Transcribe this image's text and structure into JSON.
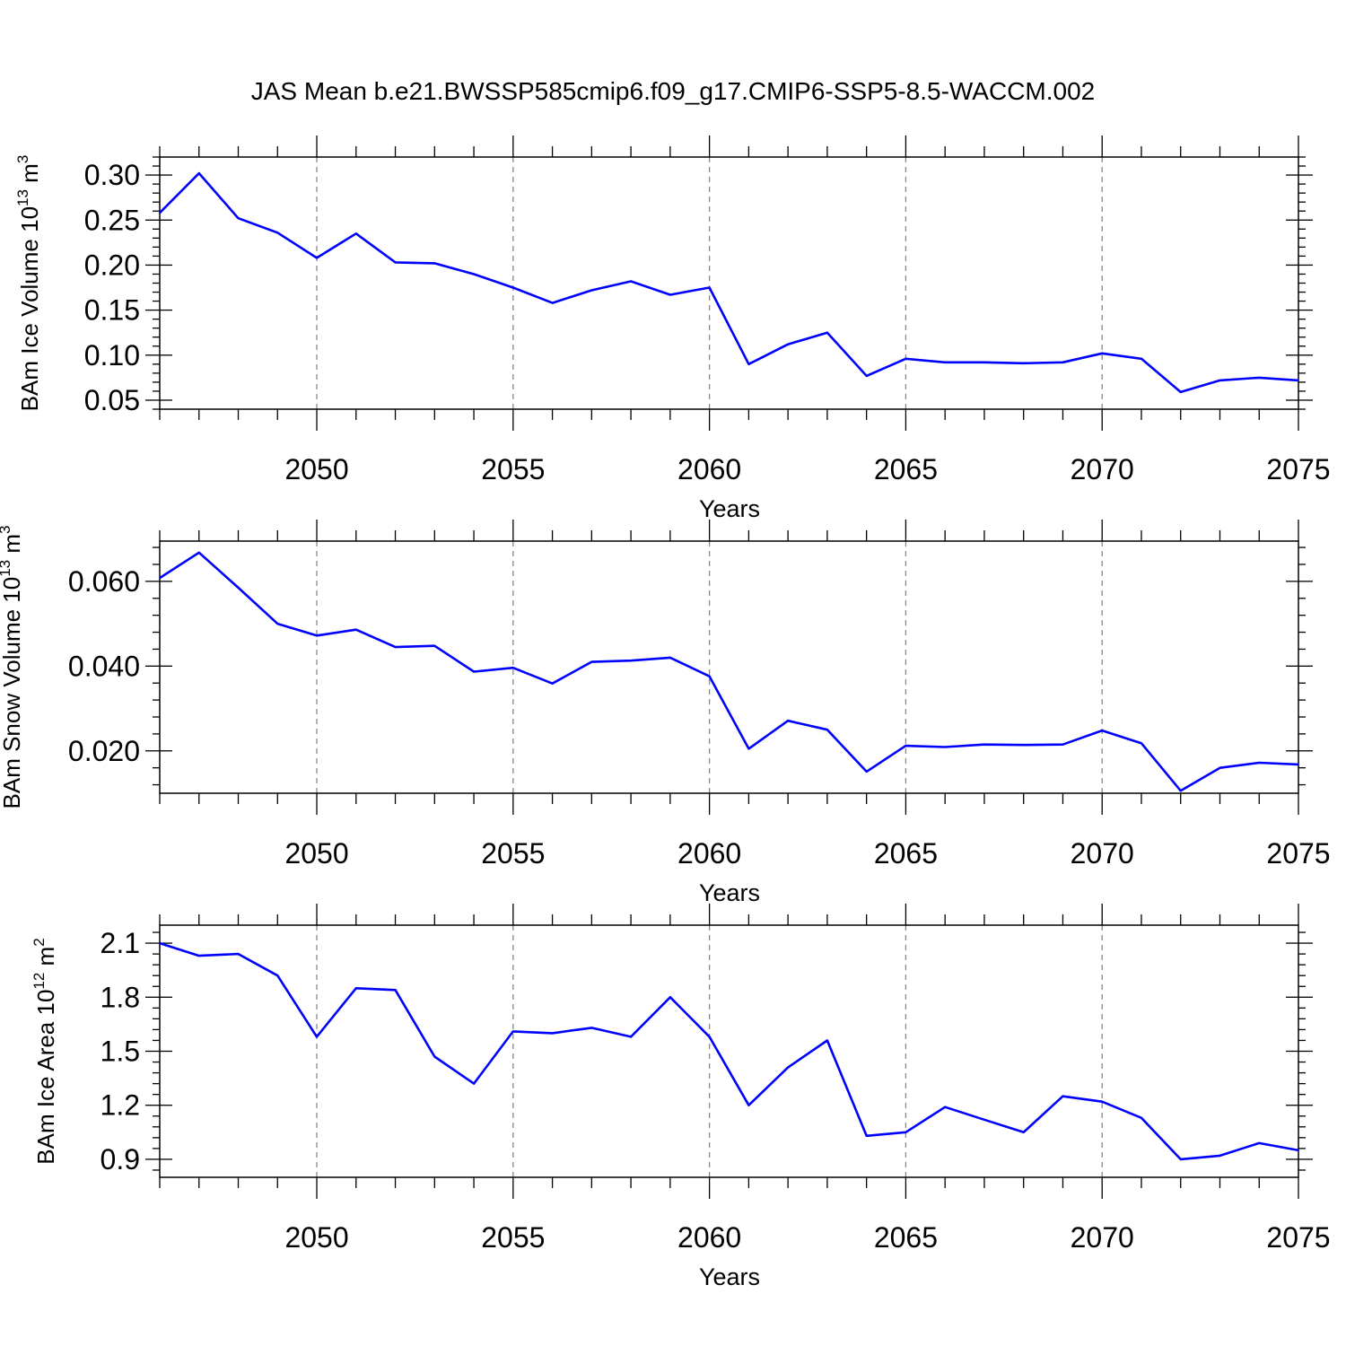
{
  "title": "JAS Mean b.e21.BWSSP585cmip6.f09_g17.CMIP6-SSP5-8.5-WACCM.002",
  "colors": {
    "line": "#0000ff",
    "frame": "#000000",
    "grid": "#888888"
  },
  "chart_data": [
    {
      "type": "line",
      "ylabel": {
        "text": "BAm Ice Volume 10",
        "sup": "13",
        "suffix": " m",
        "sup2": "3"
      },
      "xlabel": "Years",
      "xlim": [
        2046,
        2075
      ],
      "ylim": [
        0.04,
        0.32
      ],
      "xticks": [
        2050,
        2055,
        2060,
        2065,
        2070,
        2075
      ],
      "xtick_labels": [
        "2050",
        "2055",
        "2060",
        "2065",
        "2070",
        "2075"
      ],
      "yticks": [
        0.05,
        0.1,
        0.15,
        0.2,
        0.25,
        0.3
      ],
      "ytick_labels": [
        "0.05",
        "0.10",
        "0.15",
        "0.20",
        "0.25",
        "0.30"
      ],
      "grid": "vertical-dashed",
      "series": [
        {
          "x": [
            2046,
            2047,
            2048,
            2049,
            2050,
            2051,
            2052,
            2053,
            2054,
            2055,
            2056,
            2057,
            2058,
            2059,
            2060,
            2061,
            2062,
            2063,
            2064,
            2065,
            2066,
            2067,
            2068,
            2069,
            2070,
            2071,
            2072,
            2073,
            2074,
            2075
          ],
          "values": [
            0.258,
            0.302,
            0.252,
            0.236,
            0.208,
            0.235,
            0.203,
            0.202,
            0.19,
            0.175,
            0.158,
            0.172,
            0.182,
            0.167,
            0.175,
            0.09,
            0.112,
            0.125,
            0.077,
            0.096,
            0.092,
            0.092,
            0.091,
            0.092,
            0.102,
            0.096,
            0.059,
            0.072,
            0.075,
            0.072
          ]
        }
      ]
    },
    {
      "type": "line",
      "ylabel": {
        "text": "BAm Snow Volume 10",
        "sup": "13",
        "suffix": " m",
        "sup2": "3"
      },
      "xlabel": "Years",
      "xlim": [
        2046,
        2075
      ],
      "ylim": [
        0.01,
        0.0695
      ],
      "xticks": [
        2050,
        2055,
        2060,
        2065,
        2070,
        2075
      ],
      "xtick_labels": [
        "2050",
        "2055",
        "2060",
        "2065",
        "2070",
        "2075"
      ],
      "yticks": [
        0.02,
        0.04,
        0.06
      ],
      "ytick_labels": [
        "0.020",
        "0.040",
        "0.060"
      ],
      "grid": "vertical-dashed",
      "series": [
        {
          "x": [
            2046,
            2047,
            2048,
            2049,
            2050,
            2051,
            2052,
            2053,
            2054,
            2055,
            2056,
            2057,
            2058,
            2059,
            2060,
            2061,
            2062,
            2063,
            2064,
            2065,
            2066,
            2067,
            2068,
            2069,
            2070,
            2071,
            2072,
            2073,
            2074,
            2075
          ],
          "values": [
            0.0608,
            0.0668,
            0.0585,
            0.05,
            0.0472,
            0.0486,
            0.0445,
            0.0448,
            0.0387,
            0.0396,
            0.0359,
            0.041,
            0.0413,
            0.042,
            0.0376,
            0.0205,
            0.0271,
            0.025,
            0.0151,
            0.0212,
            0.0209,
            0.0215,
            0.0214,
            0.0215,
            0.0248,
            0.0218,
            0.0106,
            0.016,
            0.0172,
            0.0168
          ]
        }
      ]
    },
    {
      "type": "line",
      "ylabel": {
        "text": "BAm Ice Area 10",
        "sup": "12",
        "suffix": " m",
        "sup2": "2"
      },
      "xlabel": "Years",
      "xlim": [
        2046,
        2075
      ],
      "ylim": [
        0.8,
        2.2
      ],
      "xticks": [
        2050,
        2055,
        2060,
        2065,
        2070,
        2075
      ],
      "xtick_labels": [
        "2050",
        "2055",
        "2060",
        "2065",
        "2070",
        "2075"
      ],
      "yticks": [
        0.9,
        1.2,
        1.5,
        1.8,
        2.1
      ],
      "ytick_labels": [
        "0.9",
        "1.2",
        "1.5",
        "1.8",
        "2.1"
      ],
      "grid": "vertical-dashed",
      "series": [
        {
          "x": [
            2046,
            2047,
            2048,
            2049,
            2050,
            2051,
            2052,
            2053,
            2054,
            2055,
            2056,
            2057,
            2058,
            2059,
            2060,
            2061,
            2062,
            2063,
            2064,
            2065,
            2066,
            2067,
            2068,
            2069,
            2070,
            2071,
            2072,
            2073,
            2074,
            2075
          ],
          "values": [
            2.1,
            2.03,
            2.04,
            1.92,
            1.58,
            1.85,
            1.84,
            1.47,
            1.32,
            1.61,
            1.6,
            1.63,
            1.58,
            1.8,
            1.58,
            1.2,
            1.41,
            1.56,
            1.03,
            1.05,
            1.19,
            1.12,
            1.05,
            1.25,
            1.22,
            1.13,
            0.9,
            0.92,
            0.99,
            0.95
          ]
        }
      ]
    }
  ]
}
